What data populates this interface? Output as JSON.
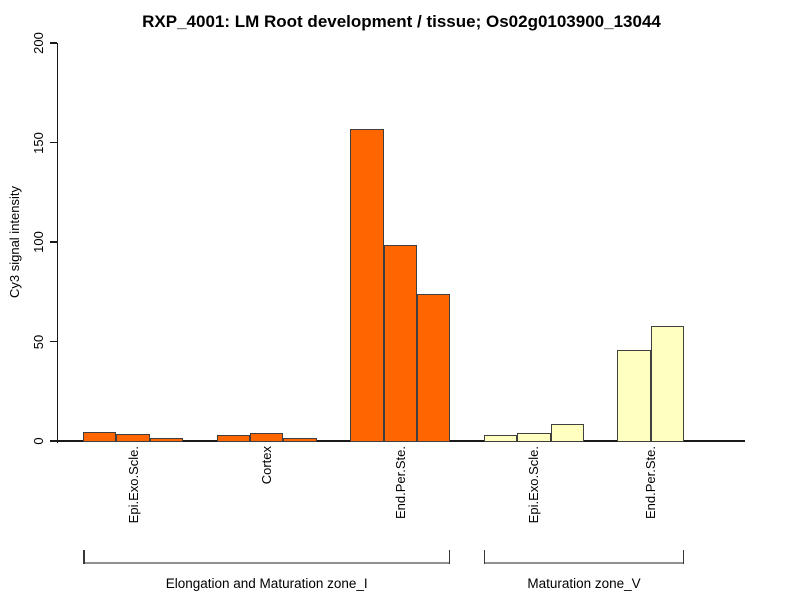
{
  "title": "RXP_4001: LM Root development / tissue; Os02g0103900_13044",
  "chart_data": {
    "type": "bar",
    "title": "RXP_4001: LM Root development / tissue; Os02g0103900_13044",
    "ylabel": "Cy3 signal intensity",
    "xlabel": "",
    "ylim": [
      0,
      200
    ],
    "yticks": [
      0,
      50,
      100,
      150,
      200
    ],
    "grid": "off",
    "legend": "none",
    "axis_color": "#1a1a1a",
    "bar_border_color": "#3f3f3f",
    "bracket_color": "#909090",
    "groups": [
      {
        "tissue": "Epi.Exo.Scle.",
        "zone": "Elongation and Maturation zone_I",
        "color": "#FF6600",
        "values": [
          4.8,
          3.7,
          1.8
        ]
      },
      {
        "tissue": "Cortex",
        "zone": "Elongation and Maturation zone_I",
        "color": "#FF6600",
        "values": [
          3.4,
          4.6,
          1.9
        ]
      },
      {
        "tissue": "End.Per.Ste.",
        "zone": "Elongation and Maturation zone_I",
        "color": "#FF6600",
        "values": [
          157,
          99,
          74
        ]
      },
      {
        "tissue": "Epi.Exo.Scle.",
        "zone": "Maturation zone_V",
        "color": "#FFFFC0",
        "values": [
          3.4,
          4.6,
          8.7
        ]
      },
      {
        "tissue": "End.Per.Ste.",
        "zone": "Maturation zone_V",
        "color": "#FFFFC0",
        "values": [
          46,
          58
        ]
      }
    ],
    "zone_brackets": [
      {
        "label": "Elongation and Maturation zone_I",
        "group_start": 0,
        "group_end": 2
      },
      {
        "label": "Maturation zone_V",
        "group_start": 3,
        "group_end": 4
      }
    ]
  }
}
